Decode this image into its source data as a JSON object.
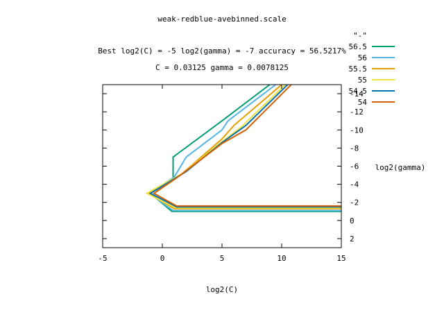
{
  "chart_data": {
    "type": "line",
    "title": "weak-redblue-avebinned.scale",
    "subtitle_best": "Best log2(C) = -5  log2(gamma) = -7  accuracy = 56.5217%",
    "subtitle_params": "C = 0.03125  gamma = 0.0078125",
    "xlabel": "log2(C)",
    "ylabel": "log2(gamma)",
    "legend_title": "\"-\"",
    "legend_position": "top-right",
    "grid": false,
    "xlim": [
      -5,
      15
    ],
    "ylim": [
      3,
      -15
    ],
    "x_ticks": [
      -5,
      0,
      5,
      10,
      15
    ],
    "y_ticks": [
      2,
      0,
      -2,
      -4,
      -6,
      -8,
      -10,
      -12,
      -14
    ],
    "series": [
      {
        "name": "56.5",
        "color": "#009e73",
        "points": [
          [
            15,
            -1
          ],
          [
            0.8,
            -1
          ],
          [
            -1,
            -3
          ],
          [
            0.9,
            -4.5
          ],
          [
            0.9,
            -7
          ],
          [
            5,
            -11
          ],
          [
            9,
            -15
          ]
        ]
      },
      {
        "name": "56",
        "color": "#56b4e9",
        "points": [
          [
            15,
            -1.1
          ],
          [
            0.9,
            -1.1
          ],
          [
            -1.1,
            -3
          ],
          [
            1,
            -4.8
          ],
          [
            2,
            -7
          ],
          [
            5,
            -10
          ],
          [
            5.5,
            -11
          ],
          [
            9.5,
            -15
          ]
        ]
      },
      {
        "name": "55.5",
        "color": "#e69f00",
        "points": [
          [
            15,
            -1.3
          ],
          [
            1,
            -1.3
          ],
          [
            -1.2,
            -3
          ],
          [
            1.5,
            -5
          ],
          [
            5,
            -9
          ],
          [
            6,
            -10.5
          ],
          [
            10,
            -15
          ]
        ]
      },
      {
        "name": "55",
        "color": "#f0e442",
        "points": [
          [
            15,
            -1.4
          ],
          [
            1.1,
            -1.4
          ],
          [
            -1.3,
            -3
          ],
          [
            1.7,
            -5.2
          ],
          [
            5,
            -8.7
          ],
          [
            6.5,
            -10.2
          ],
          [
            10.3,
            -15
          ]
        ]
      },
      {
        "name": "54.5",
        "color": "#0072b2",
        "points": [
          [
            15,
            -1.5
          ],
          [
            1.2,
            -1.5
          ],
          [
            -1,
            -3
          ],
          [
            2,
            -5.4
          ],
          [
            5,
            -8.6
          ],
          [
            7,
            -10.5
          ],
          [
            10.5,
            -15
          ]
        ]
      },
      {
        "name": "54",
        "color": "#d55e00",
        "points": [
          [
            15,
            -1.6
          ],
          [
            1.2,
            -1.6
          ],
          [
            -0.7,
            -3
          ],
          [
            1.2,
            -4.7
          ],
          [
            5,
            -8.5
          ],
          [
            7,
            -10
          ],
          [
            10.8,
            -15
          ]
        ]
      }
    ]
  }
}
